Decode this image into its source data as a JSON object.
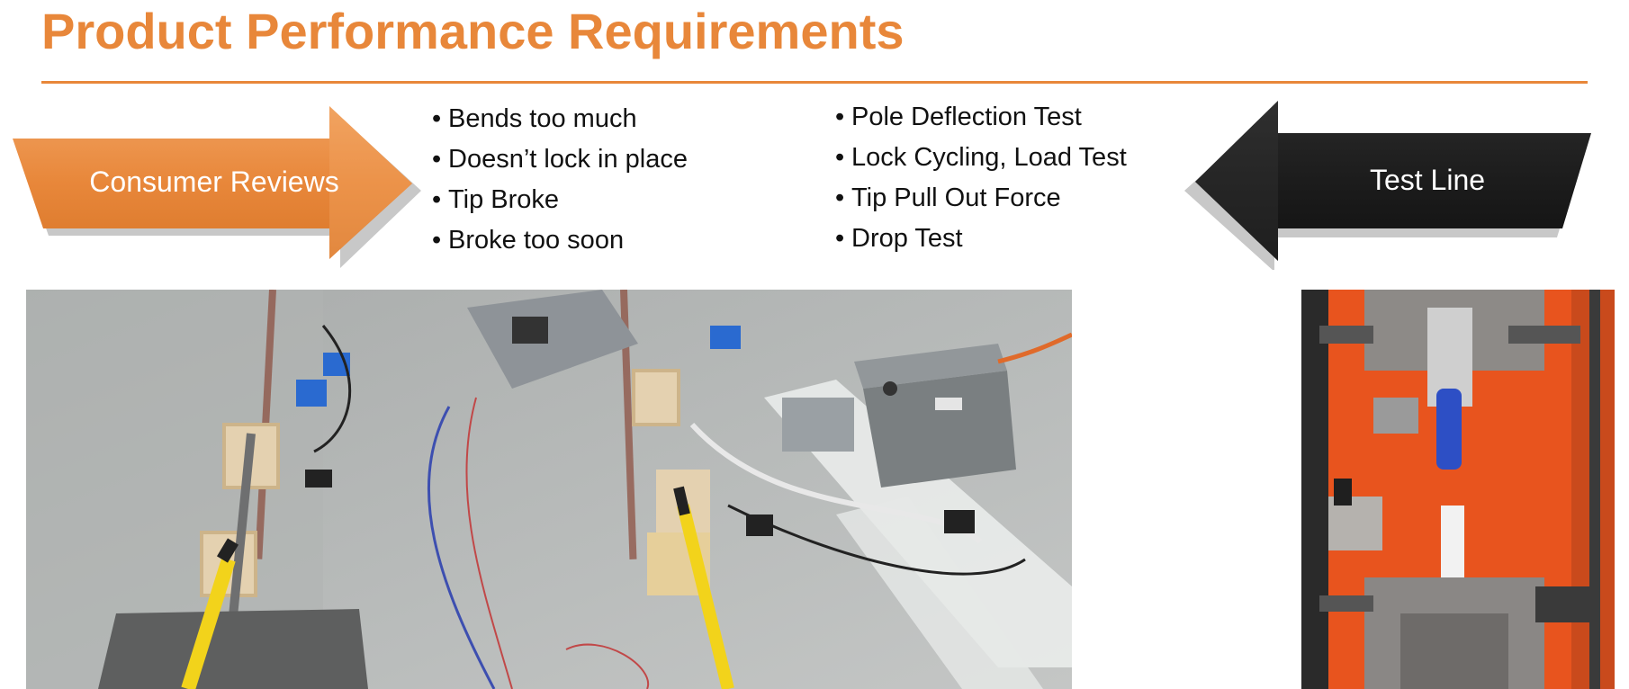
{
  "slide": {
    "title": "Product Performance Requirements"
  },
  "consumer_arrow": {
    "label": "Consumer Reviews",
    "color": "#e8873a"
  },
  "test_arrow": {
    "label": "Test Line",
    "color": "#1c1c1c"
  },
  "review_bullets": [
    "Bends too much",
    "Doesn’t lock in place",
    "Tip Broke",
    "Broke too soon"
  ],
  "test_bullets": [
    "Pole Deflection Test",
    "Lock Cycling, Load Test",
    "Tip Pull Out Force",
    "Drop Test"
  ],
  "bullet_glyph": "•",
  "colors": {
    "accent": "#e8873a",
    "pole_yellow": "#f2d31b",
    "machine_orange": "#e8541e"
  }
}
